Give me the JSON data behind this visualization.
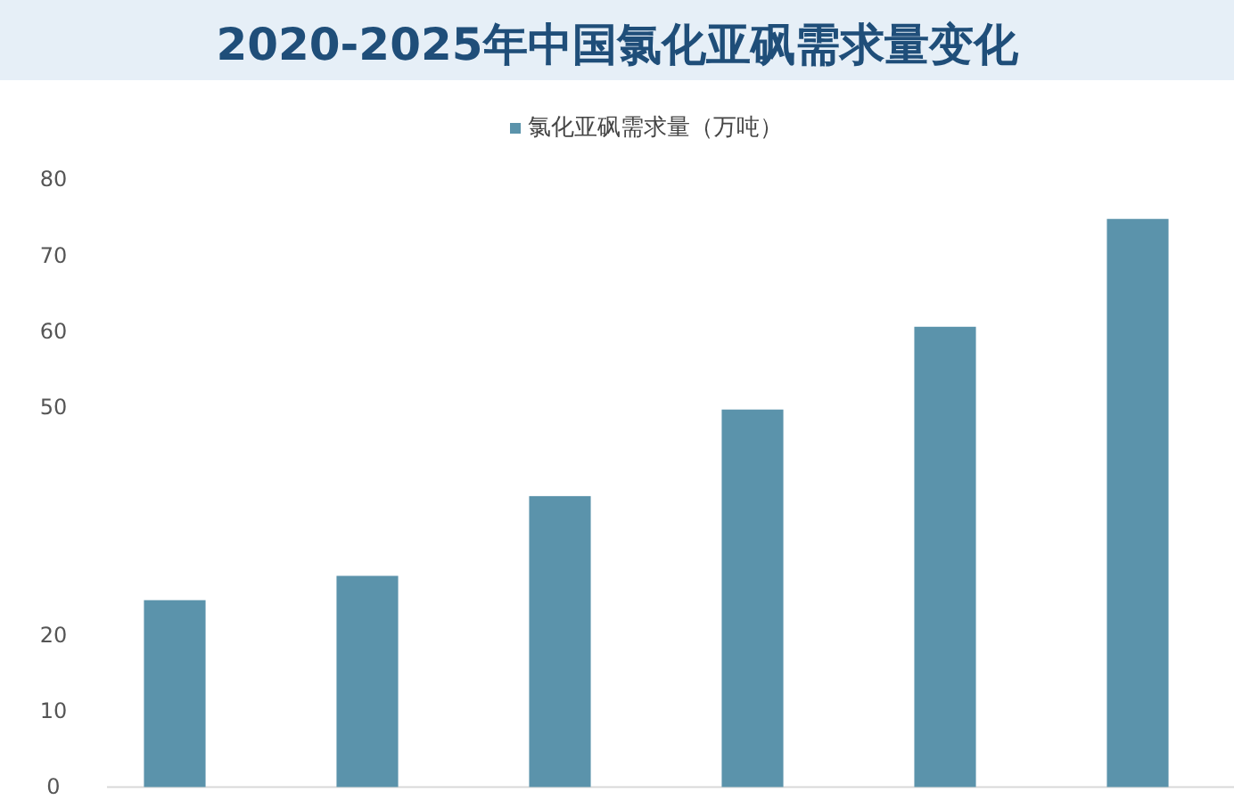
{
  "chart_data": {
    "type": "bar",
    "title": "2020-2025年中国氯化亚砜需求量变化",
    "legend": "top",
    "tick_labels": "y",
    "categories": [
      null,
      null,
      null,
      null,
      null,
      null
    ],
    "series": [
      {
        "name": "氯化亚砜需求量（万吨）",
        "color": "#5b93ab",
        "values": [
          24.6,
          27.8,
          38.3,
          49.7,
          60.6,
          74.8
        ]
      }
    ],
    "ylim": [
      0,
      80
    ],
    "yticks": [
      0,
      10,
      20,
      50,
      60,
      70,
      80
    ]
  }
}
